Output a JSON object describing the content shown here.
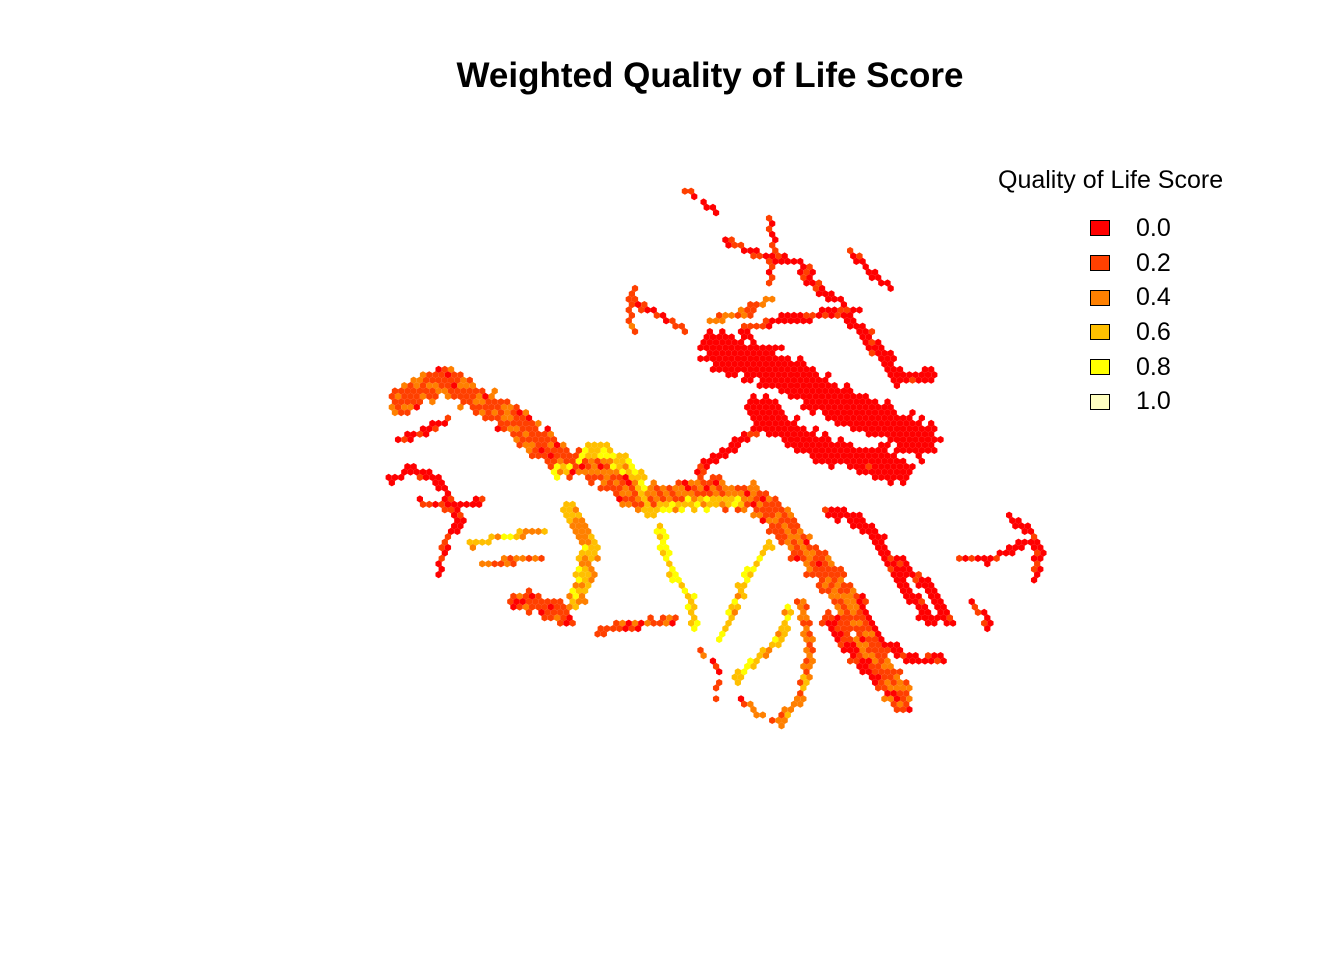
{
  "title": "Weighted Quality of Life Score",
  "legend": {
    "title": "Quality of Life Score",
    "items": [
      {
        "label": "0.0",
        "color": "#FF0000"
      },
      {
        "label": "0.2",
        "color": "#FF4000"
      },
      {
        "label": "0.4",
        "color": "#FF8000"
      },
      {
        "label": "0.6",
        "color": "#FFBF00"
      },
      {
        "label": "0.8",
        "color": "#FFFF00"
      },
      {
        "label": "1.0",
        "color": "#FFFFBF"
      }
    ]
  },
  "map": {
    "description_palette": "heat colors red to light yellow",
    "hex_cells": "rendered procedurally from corridor polylines"
  }
}
